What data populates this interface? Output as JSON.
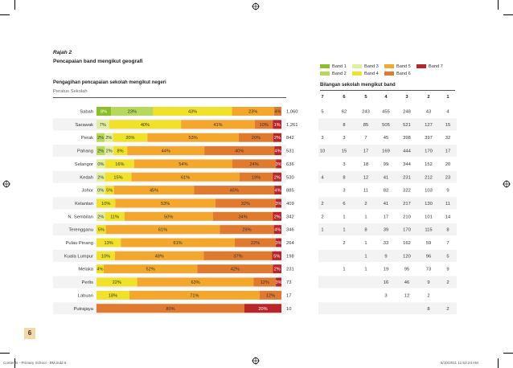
{
  "header": {
    "title": "Rajah 2",
    "subtitle": "Pencapaian band mengikut geografi"
  },
  "section": {
    "title": "Pengagihan pencapaian sekolah mengikut negeri",
    "subtitle": "Peratus Sekolah"
  },
  "right": {
    "title": "Bilangan sekolah mengikut band"
  },
  "legend": [
    {
      "label": "Band 1",
      "color": "#8cbf26"
    },
    {
      "label": "Band 2",
      "color": "#b7d95b"
    },
    {
      "label": "Band 3",
      "color": "#e2eea3"
    },
    {
      "label": "Band 4",
      "color": "#f0e22a"
    },
    {
      "label": "Band 5",
      "color": "#f3a72d"
    },
    {
      "label": "Band 6",
      "color": "#e07a2f"
    },
    {
      "label": "Band 7",
      "color": "#b8262a"
    }
  ],
  "page_number": "6",
  "footer": {
    "left": "Contents - Primary School - BM.indd   6",
    "right": "6/10/2011   11:53:24 AM"
  },
  "chart_data": {
    "type": "bar",
    "orientation": "horizontal",
    "stacked": true,
    "unit": "%",
    "band_order": [
      "Band 7",
      "Band 6",
      "Band 5",
      "Band 4",
      "Band 3",
      "Band 2",
      "Band 1"
    ],
    "band_colors": [
      "#b8262a",
      "#e07a2f",
      "#f3a72d",
      "#f0e22a",
      "#e2eea3",
      "#b7d95b",
      "#8cbf26"
    ],
    "count_columns": [
      "7",
      "6",
      "5",
      "4",
      "3",
      "2",
      "1"
    ],
    "states": [
      {
        "name": "Sabah",
        "segments": [
          {
            "band": 6,
            "value": 8,
            "label": "8%"
          },
          {
            "band": 5,
            "value": 23,
            "label": "23%"
          },
          {
            "band": 3,
            "value": 43,
            "label": "43%"
          },
          {
            "band": 2,
            "value": 23,
            "label": "23%"
          },
          {
            "band": 1,
            "value": 4,
            "label": "4%"
          }
        ],
        "total": "1,060",
        "counts": [
          "5",
          "62",
          "243",
          "455",
          "248",
          "43",
          "4"
        ]
      },
      {
        "name": "Sarawak",
        "segments": [
          {
            "band": 4,
            "value": 7,
            "label": "7%"
          },
          {
            "band": 3,
            "value": 40,
            "label": "40%"
          },
          {
            "band": 2,
            "value": 41,
            "label": "41%"
          },
          {
            "band": 1,
            "value": 10,
            "label": "10%"
          },
          {
            "band": 0,
            "value": 1,
            "label": "1%"
          }
        ],
        "total": "1,261",
        "counts": [
          "",
          "8",
          "85",
          "505",
          "521",
          "127",
          "15"
        ]
      },
      {
        "name": "Perak",
        "segments": [
          {
            "band": 5,
            "value": 2,
            "label": "2%"
          },
          {
            "band": 4,
            "value": 2,
            "label": "2%"
          },
          {
            "band": 3,
            "value": 20,
            "label": "20%"
          },
          {
            "band": 2,
            "value": 53,
            "label": "53%"
          },
          {
            "band": 1,
            "value": 20,
            "label": "20%"
          },
          {
            "band": 0,
            "value": 2,
            "label": "2%"
          }
        ],
        "total": "842",
        "counts": [
          "3",
          "3",
          "7",
          "45",
          "398",
          "397",
          "32"
        ]
      },
      {
        "name": "Pahang",
        "segments": [
          {
            "band": 5,
            "value": 2,
            "label": "2%"
          },
          {
            "band": 4,
            "value": 2,
            "label": "2%"
          },
          {
            "band": 3,
            "value": 8,
            "label": "8%"
          },
          {
            "band": 2,
            "value": 44,
            "label": "44%"
          },
          {
            "band": 1,
            "value": 40,
            "label": "40%"
          },
          {
            "band": 0,
            "value": 4,
            "label": "4%"
          }
        ],
        "total": "531",
        "counts": [
          "10",
          "15",
          "17",
          "169",
          "444",
          "170",
          "17"
        ]
      },
      {
        "name": "Selangor",
        "segments": [
          {
            "band": 4,
            "value": 0,
            "label": "0%"
          },
          {
            "band": 3,
            "value": 16,
            "label": "16%"
          },
          {
            "band": 2,
            "value": 54,
            "label": "54%"
          },
          {
            "band": 1,
            "value": 24,
            "label": "24%"
          },
          {
            "band": 0,
            "value": 3,
            "label": "3%"
          }
        ],
        "total": "636",
        "counts": [
          "",
          "3",
          "18",
          "99",
          "344",
          "152",
          "20"
        ]
      },
      {
        "name": "Kedah",
        "segments": [
          {
            "band": 4,
            "value": 2,
            "label": "2%"
          },
          {
            "band": 3,
            "value": 15,
            "label": "15%"
          },
          {
            "band": 2,
            "value": 61,
            "label": "61%"
          },
          {
            "band": 1,
            "value": 19,
            "label": "19%"
          },
          {
            "band": 0,
            "value": 2,
            "label": "2%"
          }
        ],
        "total": "530",
        "counts": [
          "4",
          "8",
          "12",
          "41",
          "231",
          "212",
          "23"
        ]
      },
      {
        "name": "Johor",
        "segments": [
          {
            "band": 4,
            "value": 0,
            "label": "0%"
          },
          {
            "band": 3,
            "value": 5,
            "label": "5%"
          },
          {
            "band": 2,
            "value": 45,
            "label": "45%"
          },
          {
            "band": 1,
            "value": 45,
            "label": "45%"
          },
          {
            "band": 0,
            "value": 4,
            "label": "4%"
          }
        ],
        "total": "885",
        "counts": [
          "",
          "3",
          "11",
          "82",
          "322",
          "103",
          "9"
        ]
      },
      {
        "name": "Kelantan",
        "segments": [
          {
            "band": 3,
            "value": 10,
            "label": "10%"
          },
          {
            "band": 2,
            "value": 53,
            "label": "53%"
          },
          {
            "band": 1,
            "value": 32,
            "label": "32%"
          },
          {
            "band": 0,
            "value": 3,
            "label": "3%"
          }
        ],
        "total": "409",
        "counts": [
          "2",
          "6",
          "2",
          "41",
          "217",
          "130",
          "11"
        ]
      },
      {
        "name": "N. Sembilan",
        "segments": [
          {
            "band": 4,
            "value": 2,
            "label": "2%"
          },
          {
            "band": 3,
            "value": 11,
            "label": "11%"
          },
          {
            "band": 2,
            "value": 50,
            "label": "50%"
          },
          {
            "band": 1,
            "value": 34,
            "label": "34%"
          },
          {
            "band": 0,
            "value": 2,
            "label": "2%"
          }
        ],
        "total": "342",
        "counts": [
          "2",
          "1",
          "1",
          "17",
          "210",
          "101",
          "14"
        ]
      },
      {
        "name": "Terengganu",
        "segments": [
          {
            "band": 3,
            "value": 5,
            "label": "5%"
          },
          {
            "band": 2,
            "value": 61,
            "label": "61%"
          },
          {
            "band": 1,
            "value": 29,
            "label": "29%"
          },
          {
            "band": 0,
            "value": 4,
            "label": "4%"
          }
        ],
        "total": "346",
        "counts": [
          "1",
          "1",
          "8",
          "39",
          "170",
          "115",
          "8"
        ]
      },
      {
        "name": "Pulau Pinang",
        "segments": [
          {
            "band": 3,
            "value": 13,
            "label": "13%"
          },
          {
            "band": 2,
            "value": 61,
            "label": "61%"
          },
          {
            "band": 1,
            "value": 22,
            "label": "22%"
          },
          {
            "band": 0,
            "value": 3,
            "label": "3%"
          }
        ],
        "total": "264",
        "counts": [
          "",
          "2",
          "1",
          "33",
          "162",
          "59",
          "7"
        ]
      },
      {
        "name": "Kuala Lumpur",
        "segments": [
          {
            "band": 3,
            "value": 10,
            "label": "10%"
          },
          {
            "band": 2,
            "value": 48,
            "label": "48%"
          },
          {
            "band": 1,
            "value": 37,
            "label": "37%"
          },
          {
            "band": 0,
            "value": 5,
            "label": "5%"
          }
        ],
        "total": "198",
        "counts": [
          "",
          "",
          "1",
          "9",
          "120",
          "96",
          "5"
        ]
      },
      {
        "name": "Melaka",
        "segments": [
          {
            "band": 3,
            "value": 4,
            "label": "4%"
          },
          {
            "band": 2,
            "value": 52,
            "label": "52%"
          },
          {
            "band": 1,
            "value": 42,
            "label": "42%"
          },
          {
            "band": 0,
            "value": 2,
            "label": "2%"
          }
        ],
        "total": "231",
        "counts": [
          "",
          "1",
          "1",
          "19",
          "95",
          "73",
          "9"
        ]
      },
      {
        "name": "Perlis",
        "segments": [
          {
            "band": 3,
            "value": 22,
            "label": "22%"
          },
          {
            "band": 2,
            "value": 63,
            "label": "63%"
          },
          {
            "band": 1,
            "value": 12,
            "label": "12%"
          },
          {
            "band": 0,
            "value": 3,
            "label": "3%"
          }
        ],
        "total": "73",
        "counts": [
          "",
          "",
          "",
          "16",
          "46",
          "9",
          "2"
        ]
      },
      {
        "name": "Labuan",
        "segments": [
          {
            "band": 3,
            "value": 18,
            "label": "18%"
          },
          {
            "band": 2,
            "value": 71,
            "label": "71%"
          },
          {
            "band": 1,
            "value": 12,
            "label": "12%"
          }
        ],
        "total": "17",
        "counts": [
          "",
          "",
          "",
          "3",
          "12",
          "2",
          ""
        ]
      },
      {
        "name": "Putrajaya",
        "segments": [
          {
            "band": 1,
            "value": 80,
            "label": "80%"
          },
          {
            "band": 0,
            "value": 20,
            "label": "20%"
          }
        ],
        "total": "10",
        "counts": [
          "",
          "",
          "",
          "",
          "",
          "8",
          "2"
        ]
      }
    ]
  }
}
